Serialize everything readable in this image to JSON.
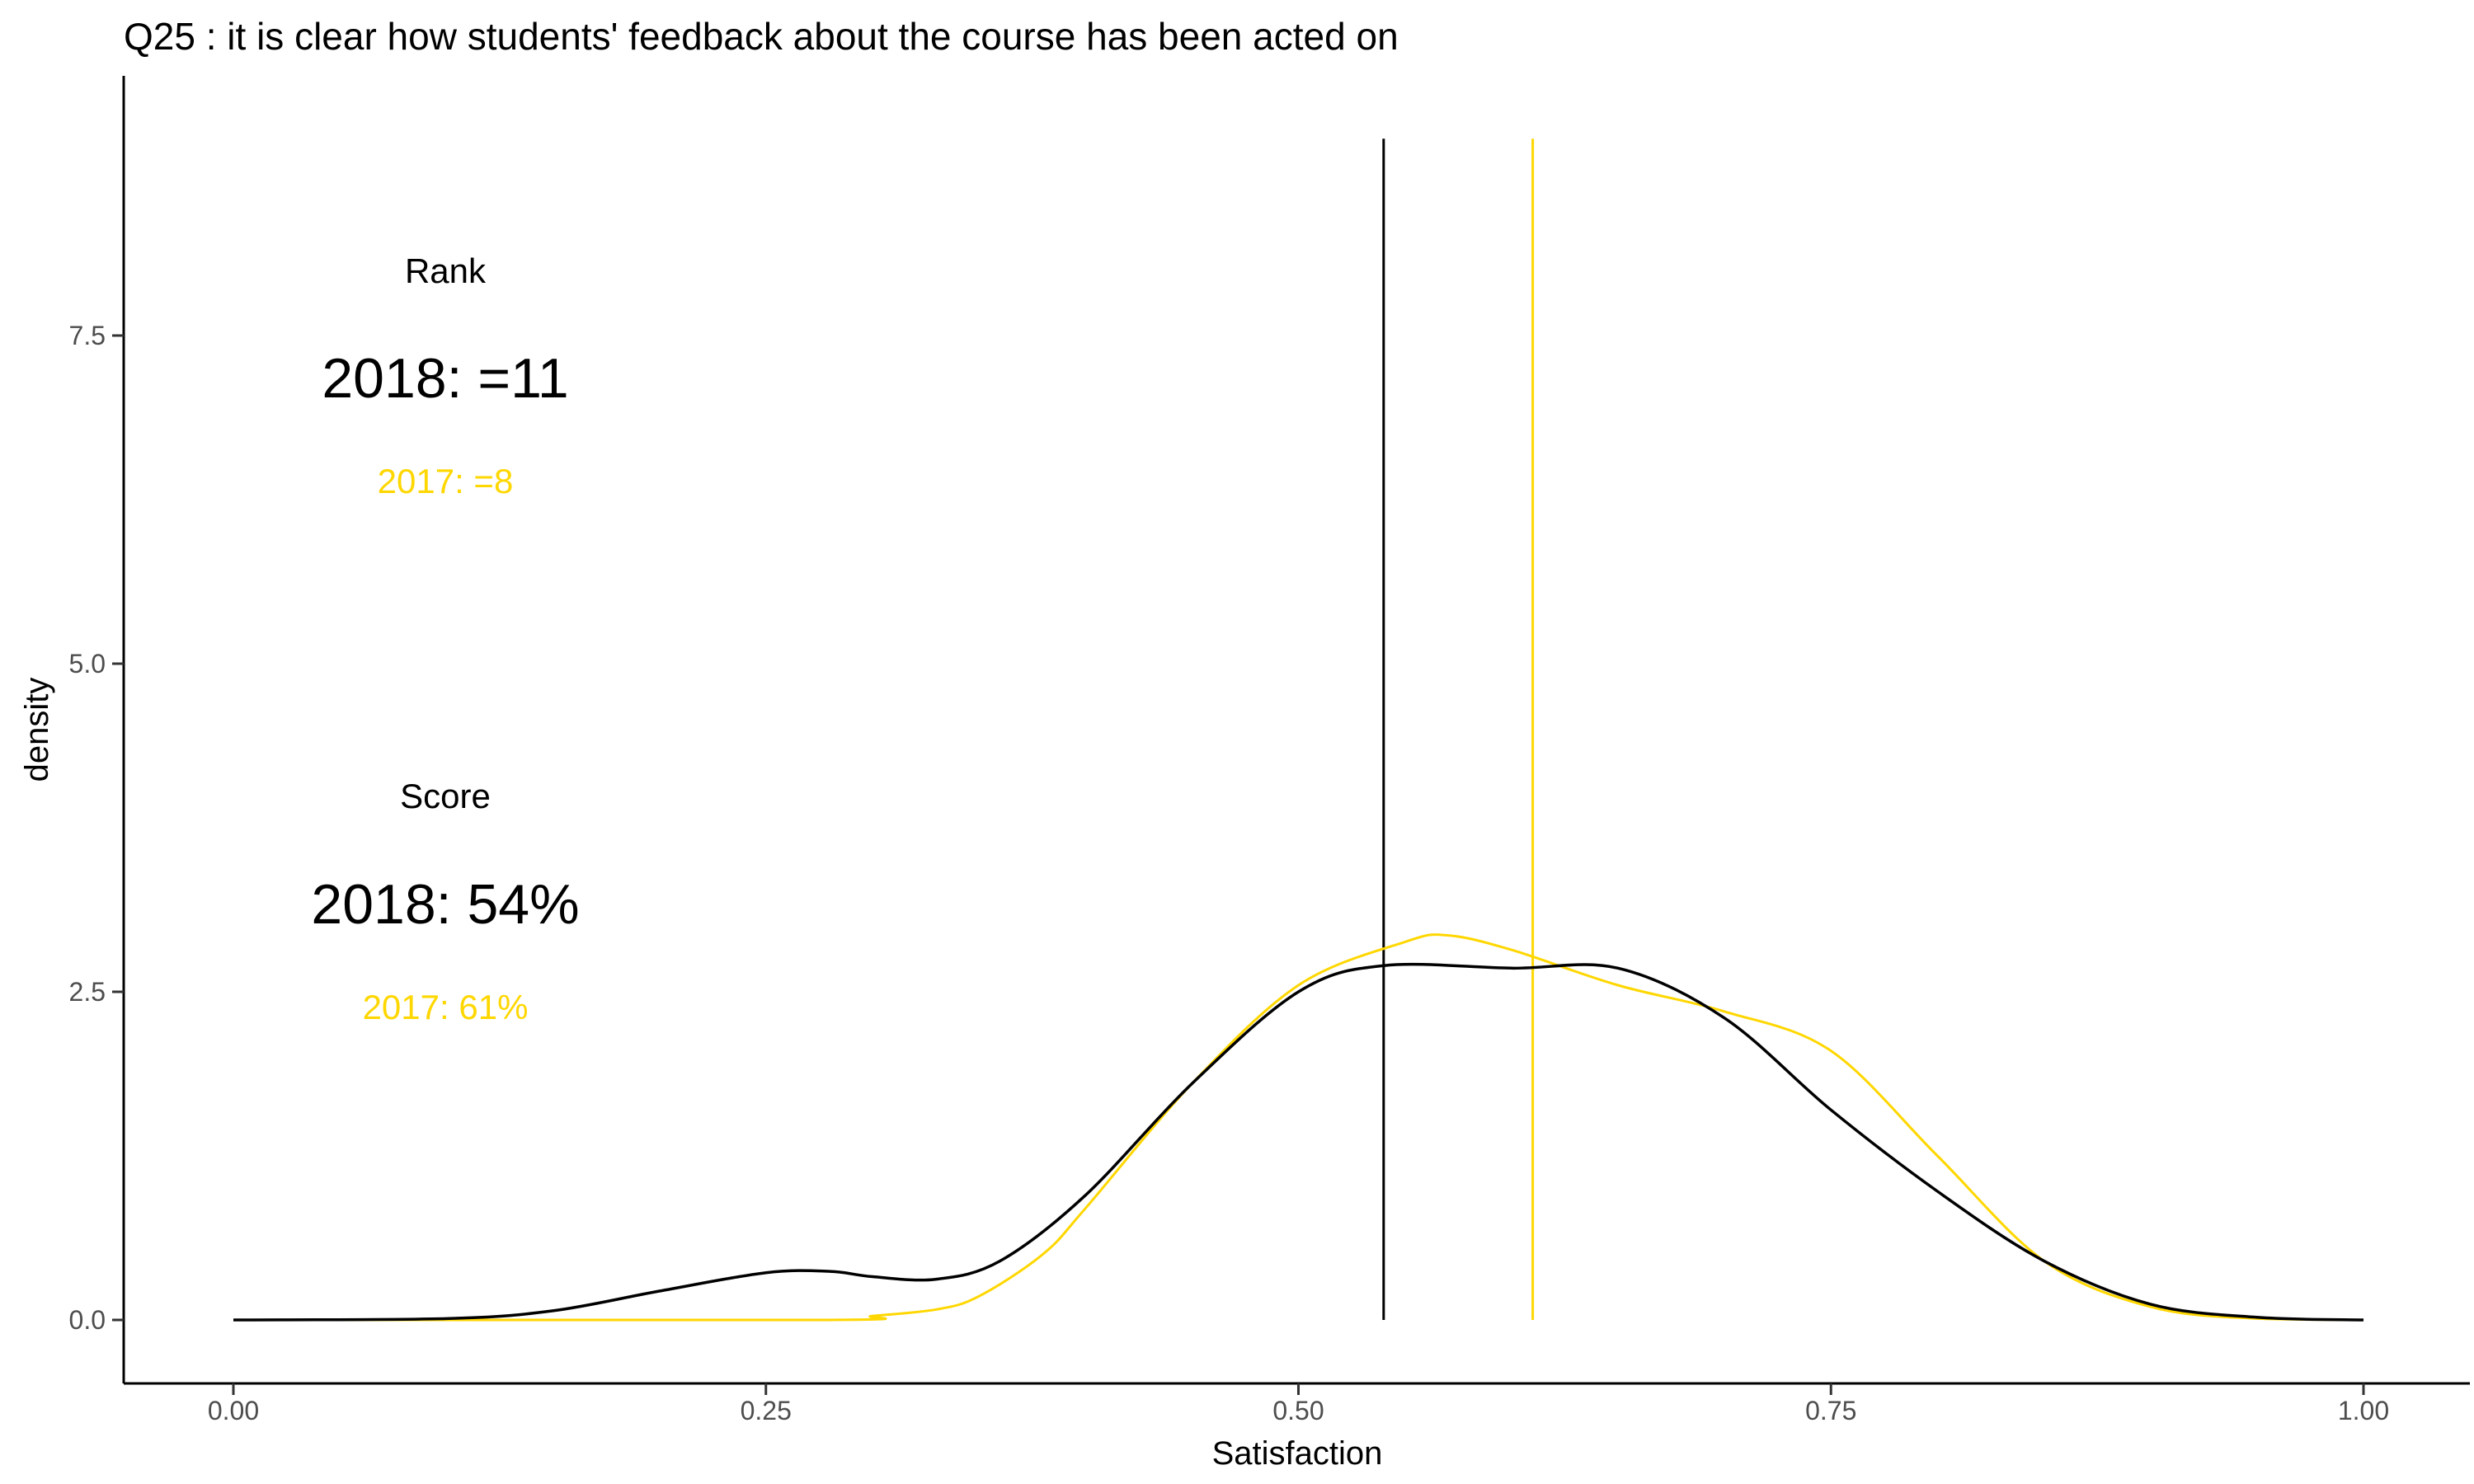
{
  "chart_data": {
    "type": "area",
    "title": "Q25 :   it is clear how students' feedback about the course has been acted on",
    "xlabel": "Satisfaction",
    "ylabel": "density",
    "xlim": [
      0.0,
      1.0
    ],
    "ylim": [
      0.0,
      9.0
    ],
    "x_ticks": [
      "0.00",
      "0.25",
      "0.50",
      "0.75",
      "1.00"
    ],
    "y_ticks": [
      "0.0",
      "2.5",
      "5.0",
      "7.5"
    ],
    "grid": false,
    "legend": "none",
    "series": [
      {
        "year": "2017",
        "color": "#FFD700",
        "x": [
          0.0,
          0.28,
          0.3,
          0.33,
          0.35,
          0.38,
          0.4,
          0.45,
          0.5,
          0.55,
          0.57,
          0.6,
          0.65,
          0.7,
          0.75,
          0.8,
          0.85,
          0.9,
          0.95,
          1.0
        ],
        "y": [
          0.0,
          0.0,
          0.03,
          0.08,
          0.18,
          0.5,
          0.85,
          1.8,
          2.55,
          2.88,
          2.93,
          2.82,
          2.55,
          2.35,
          2.05,
          1.25,
          0.45,
          0.1,
          0.01,
          0.0
        ]
      },
      {
        "year": "2018",
        "color": "#000000",
        "x": [
          0.0,
          0.1,
          0.15,
          0.2,
          0.25,
          0.28,
          0.3,
          0.33,
          0.36,
          0.4,
          0.45,
          0.5,
          0.54,
          0.6,
          0.65,
          0.7,
          0.75,
          0.8,
          0.85,
          0.9,
          0.95,
          1.0
        ],
        "y": [
          0.0,
          0.01,
          0.07,
          0.22,
          0.36,
          0.37,
          0.33,
          0.31,
          0.45,
          0.95,
          1.8,
          2.5,
          2.7,
          2.68,
          2.68,
          2.3,
          1.6,
          0.98,
          0.45,
          0.12,
          0.02,
          0.0
        ]
      }
    ],
    "vlines": [
      {
        "year": "2018",
        "x": 0.54,
        "color": "#000000"
      },
      {
        "year": "2017",
        "x": 0.61,
        "color": "#FFD700"
      }
    ],
    "annotations": {
      "rank_label": "Rank",
      "rank_2018": "2018: =11",
      "rank_2017": "2017: =8",
      "score_label": "Score",
      "score_2018": "2018: 54%",
      "score_2017": "2017: 61%",
      "color_2018": "#000000",
      "color_2017": "#FFD700"
    }
  }
}
